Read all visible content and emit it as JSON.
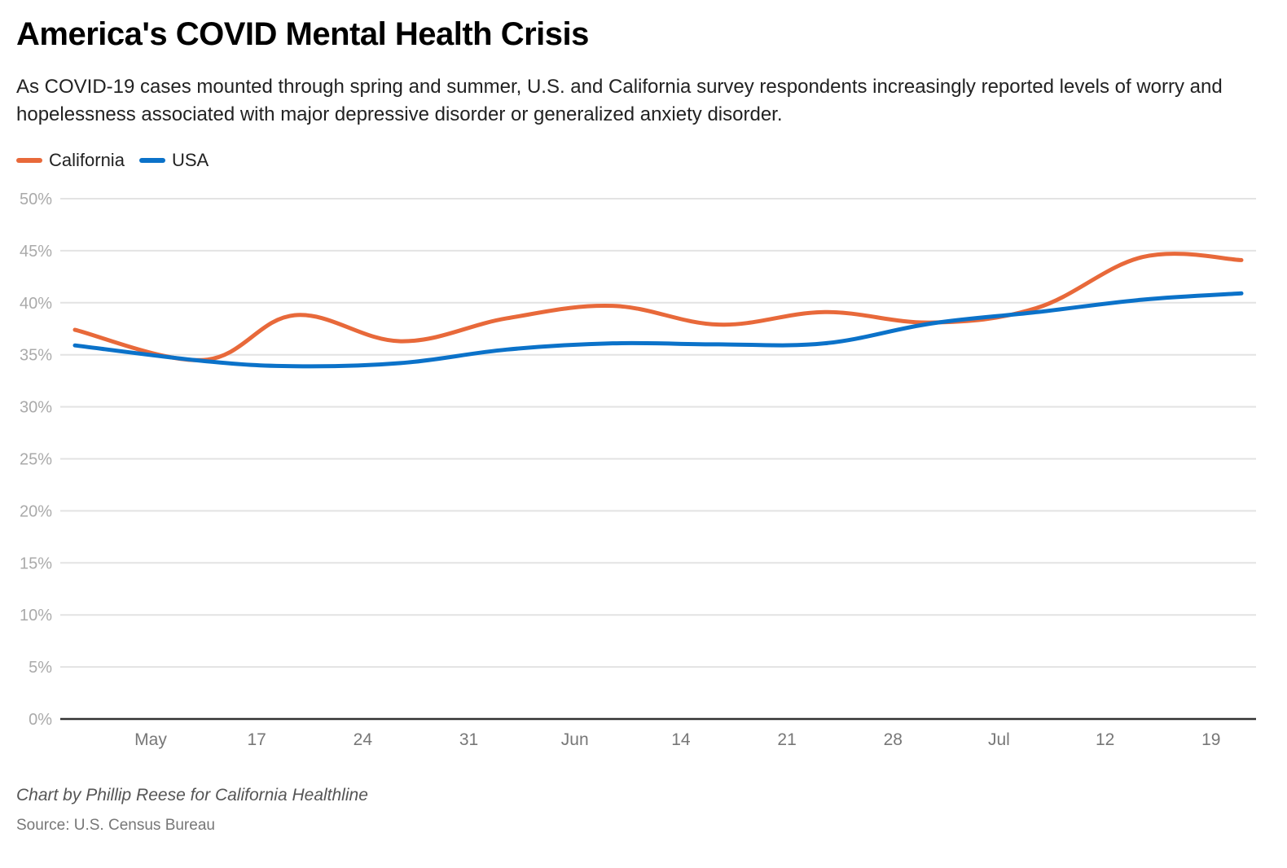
{
  "header": {
    "title": "America's COVID Mental Health Crisis",
    "subtitle": "As COVID-19 cases mounted through spring and summer, U.S. and California survey respondents increasingly reported levels of worry and hopelessness associated with major depressive disorder or generalized anxiety disorder."
  },
  "legend": [
    {
      "label": "California",
      "color": "#E8693A"
    },
    {
      "label": "USA",
      "color": "#0B72C9"
    }
  ],
  "footer": {
    "credit": "Chart by Phillip Reese for California Healthline",
    "source": "Source: U.S. Census Bureau"
  },
  "chart_data": {
    "type": "line",
    "title": "America's COVID Mental Health Crisis",
    "xlabel": "",
    "ylabel": "",
    "ylim": [
      0,
      50
    ],
    "yticks": [
      0,
      5,
      10,
      15,
      20,
      25,
      30,
      35,
      40,
      45,
      50
    ],
    "ytick_labels": [
      "0%",
      "5%",
      "10%",
      "15%",
      "20%",
      "25%",
      "30%",
      "35%",
      "40%",
      "45%",
      "50%"
    ],
    "grid": true,
    "legend_position": "top-left",
    "x_domain_days": [
      0,
      77
    ],
    "xticks": [
      {
        "label": "May",
        "day": 5
      },
      {
        "label": "17",
        "day": 12
      },
      {
        "label": "24",
        "day": 19
      },
      {
        "label": "31",
        "day": 26
      },
      {
        "label": "Jun",
        "day": 33
      },
      {
        "label": "14",
        "day": 40
      },
      {
        "label": "21",
        "day": 47
      },
      {
        "label": "28",
        "day": 54
      },
      {
        "label": "Jul",
        "day": 61
      },
      {
        "label": "12",
        "day": 68
      },
      {
        "label": "19",
        "day": 75
      }
    ],
    "x_days": [
      0,
      8.5,
      14.5,
      21.5,
      28.5,
      35.5,
      42.5,
      49.5,
      56.5,
      63.5,
      70.5,
      77
    ],
    "series": [
      {
        "name": "California",
        "color": "#E8693A",
        "values": [
          37.4,
          34.5,
          38.8,
          36.3,
          38.5,
          39.7,
          37.9,
          39.1,
          38.1,
          39.5,
          44.4,
          44.1
        ]
      },
      {
        "name": "USA",
        "color": "#0B72C9",
        "values": [
          35.9,
          34.4,
          33.9,
          34.2,
          35.5,
          36.1,
          36.0,
          36.1,
          38.0,
          39.1,
          40.3,
          40.9
        ]
      }
    ]
  }
}
